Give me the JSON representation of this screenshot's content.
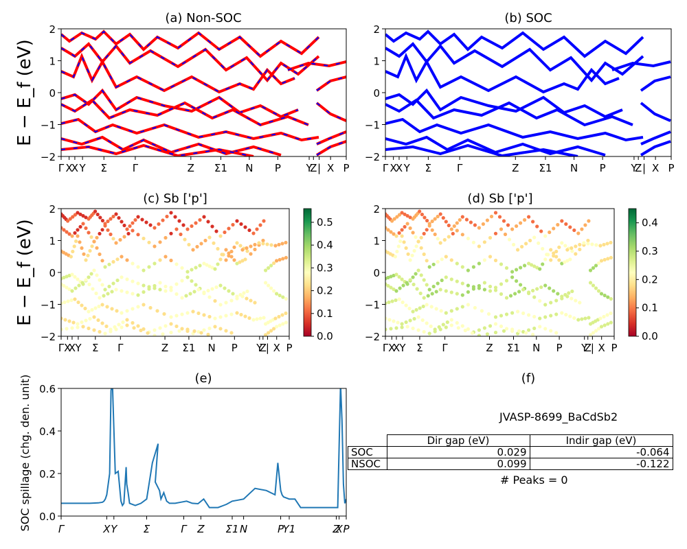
{
  "chart_data": [
    {
      "type": "line",
      "panel": "a",
      "title": "(a) Non-SOC",
      "ylabel": "E − E_f (eV)",
      "ylim": [
        -2,
        2
      ],
      "yticks": [
        "2",
        "1",
        "0",
        "−1",
        "−2"
      ],
      "kpath_labels": [
        "Γ",
        "X",
        "X",
        "Y",
        "Σ",
        "Γ",
        "Z",
        "Σ1",
        "N",
        "P",
        "Y",
        "Z",
        "|",
        "X",
        "P"
      ],
      "line_style": "red solid with blue dashes",
      "colors": [
        "#ff0000",
        "#0000ff"
      ]
    },
    {
      "type": "line",
      "panel": "b",
      "title": "(b) SOC",
      "ylim": [
        -2,
        2
      ],
      "yticks": [
        "2",
        "1",
        "0",
        "−1",
        "−2"
      ],
      "kpath_labels": [
        "Γ",
        "X",
        "X",
        "Y",
        "Σ",
        "Γ",
        "Z",
        "Σ1",
        "N",
        "P",
        "Y",
        "Z",
        "|",
        "X",
        "P"
      ],
      "line_style": "blue solid",
      "colors": [
        "#0000ff"
      ]
    },
    {
      "type": "scatter",
      "panel": "c",
      "title": "(c)  Sb ['p']",
      "ylabel": "E − E_f (eV)",
      "ylim": [
        -2,
        2
      ],
      "yticks": [
        "2",
        "1",
        "0",
        "−1",
        "−2"
      ],
      "kpath_labels": [
        "Γ",
        "X",
        "X",
        "Y",
        "Σ",
        "Γ",
        "Z",
        "Σ1",
        "N",
        "P",
        "Y",
        "Z",
        "|",
        "X",
        "P"
      ],
      "colormap": "RdYlGn",
      "colorbar_ticks": [
        "0.0",
        "0.1",
        "0.2",
        "0.3",
        "0.4",
        "0.5"
      ],
      "colorbar_range": [
        0,
        0.56
      ]
    },
    {
      "type": "scatter",
      "panel": "d",
      "title": "(d) Sb ['p']",
      "ylim": [
        -2,
        2
      ],
      "yticks": [
        "2",
        "1",
        "0",
        "−1",
        "−2"
      ],
      "kpath_labels": [
        "Γ",
        "X",
        "X",
        "Y",
        "Σ",
        "Γ",
        "Z",
        "Σ1",
        "N",
        "P",
        "Y",
        "Z",
        "|",
        "X",
        "P"
      ],
      "colormap": "RdYlGn",
      "colorbar_ticks": [
        "0.0",
        "0.1",
        "0.2",
        "0.3",
        "0.4"
      ],
      "colorbar_range": [
        0,
        0.45
      ]
    },
    {
      "type": "line",
      "panel": "e",
      "title": "(e)",
      "ylabel": "SOC spillage (chg. den. unit)",
      "ylim": [
        0,
        0.6
      ],
      "yticks": [
        "0.6",
        "0.4",
        "0.2",
        "0.0"
      ],
      "xlabels": [
        "Γ",
        "X",
        "Y",
        "Σ",
        "Γ",
        "Z",
        "Σ1",
        "N",
        "P",
        "Y1",
        "Z",
        "X",
        "P"
      ],
      "x": [
        0.0,
        0.05,
        0.1,
        0.13,
        0.145,
        0.15,
        0.155,
        0.16,
        0.17,
        0.175,
        0.18,
        0.19,
        0.2,
        0.21,
        0.215,
        0.22,
        0.228,
        0.23,
        0.235,
        0.24,
        0.26,
        0.28,
        0.3,
        0.32,
        0.34,
        0.33,
        0.345,
        0.35,
        0.36,
        0.37,
        0.38,
        0.4,
        0.42,
        0.44,
        0.46,
        0.48,
        0.5,
        0.52,
        0.54,
        0.55,
        0.56,
        0.57,
        0.58,
        0.6,
        0.62,
        0.64,
        0.68,
        0.72,
        0.75,
        0.76,
        0.77,
        0.775,
        0.78,
        0.79,
        0.8,
        0.82,
        0.84,
        0.86,
        0.88,
        0.9,
        0.93,
        0.96,
        0.97,
        0.98,
        0.985,
        0.99,
        0.995,
        1.0
      ],
      "values": [
        0.06,
        0.06,
        0.06,
        0.062,
        0.065,
        0.07,
        0.08,
        0.1,
        0.2,
        0.59,
        0.62,
        0.2,
        0.21,
        0.07,
        0.05,
        0.06,
        0.23,
        0.15,
        0.11,
        0.06,
        0.05,
        0.06,
        0.08,
        0.25,
        0.34,
        0.16,
        0.12,
        0.08,
        0.11,
        0.07,
        0.06,
        0.06,
        0.065,
        0.07,
        0.06,
        0.058,
        0.08,
        0.04,
        0.04,
        0.04,
        0.045,
        0.05,
        0.055,
        0.07,
        0.075,
        0.08,
        0.13,
        0.12,
        0.1,
        0.25,
        0.12,
        0.1,
        0.09,
        0.085,
        0.08,
        0.08,
        0.04,
        0.04,
        0.04,
        0.04,
        0.04,
        0.04,
        0.04,
        0.62,
        0.45,
        0.15,
        0.06,
        0.08
      ],
      "color": "#1f77b4"
    }
  ],
  "panel_f": {
    "title": "(f)",
    "material": "JVASP-8699_BaCdSb2",
    "table": {
      "headers": [
        "Dir gap (eV)",
        "Indir gap (eV)"
      ],
      "rows": [
        {
          "label": "SOC",
          "dir": "0.029",
          "indir": "-0.064"
        },
        {
          "label": "NSOC",
          "dir": "0.099",
          "indir": "-0.122"
        }
      ]
    },
    "peaks": "# Peaks = 0"
  }
}
